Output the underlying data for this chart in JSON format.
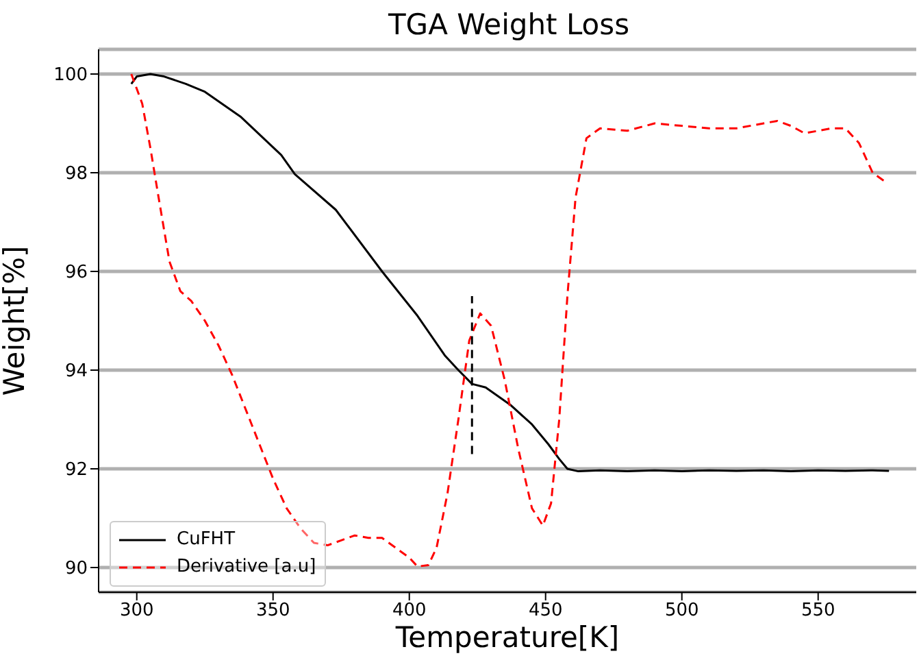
{
  "chart_data": {
    "type": "line",
    "title": "TGA Weight Loss",
    "xlabel": "Temperature[K]",
    "ylabel": "Weight[%]",
    "xlim": [
      286,
      586
    ],
    "ylim": [
      89.5,
      100.5
    ],
    "xticks": [
      300,
      350,
      400,
      450,
      500,
      550
    ],
    "yticks": [
      90,
      92,
      94,
      96,
      98,
      100
    ],
    "grid": "y",
    "legend": "bottom left",
    "marker": "none",
    "series": [
      {
        "name": "CuFHT",
        "color": "#000000",
        "line_style": "solid",
        "x": [
          298,
          300,
          305,
          310,
          318,
          325,
          338,
          353,
          358,
          373,
          390,
          403,
          413,
          418,
          423,
          428,
          437,
          445,
          451,
          455,
          458,
          462,
          470,
          480,
          490,
          500,
          510,
          520,
          530,
          540,
          550,
          560,
          570,
          576
        ],
        "values": [
          99.8,
          99.95,
          100.0,
          99.95,
          99.8,
          99.64,
          99.14,
          98.36,
          97.97,
          97.25,
          96.0,
          95.1,
          94.3,
          94.0,
          93.72,
          93.65,
          93.3,
          92.9,
          92.5,
          92.2,
          92.0,
          91.95,
          91.97,
          91.95,
          91.97,
          91.95,
          91.97,
          91.96,
          91.97,
          91.95,
          91.97,
          91.96,
          91.97,
          91.96
        ]
      },
      {
        "name": "Derivative [a.u]",
        "color": "#ff0000",
        "line_style": "dashed",
        "x": [
          298,
          302,
          305,
          308,
          312,
          316,
          320,
          325,
          330,
          335,
          340,
          345,
          350,
          355,
          360,
          365,
          370,
          375,
          380,
          385,
          390,
          395,
          400,
          403,
          407,
          410,
          414,
          418,
          422,
          426,
          430,
          435,
          440,
          445,
          449,
          452,
          455,
          458,
          461,
          465,
          470,
          480,
          490,
          500,
          510,
          520,
          530,
          535,
          540,
          545,
          550,
          555,
          560,
          565,
          570,
          575
        ],
        "values": [
          100.0,
          99.4,
          98.5,
          97.5,
          96.2,
          95.6,
          95.4,
          95.0,
          94.5,
          93.9,
          93.2,
          92.5,
          91.8,
          91.2,
          90.8,
          90.5,
          90.45,
          90.55,
          90.65,
          90.6,
          90.6,
          90.4,
          90.2,
          90.02,
          90.05,
          90.4,
          91.5,
          93.0,
          94.6,
          95.15,
          94.9,
          93.8,
          92.4,
          91.2,
          90.85,
          91.3,
          93.0,
          95.5,
          97.5,
          98.7,
          98.9,
          98.85,
          99.0,
          98.95,
          98.9,
          98.9,
          99.0,
          99.05,
          98.95,
          98.8,
          98.85,
          98.9,
          98.9,
          98.6,
          98.0,
          97.8
        ]
      },
      {
        "color": "#000000",
        "line_style": "dashed",
        "x": [
          423,
          423
        ],
        "values": [
          92.3,
          95.5
        ]
      }
    ]
  }
}
